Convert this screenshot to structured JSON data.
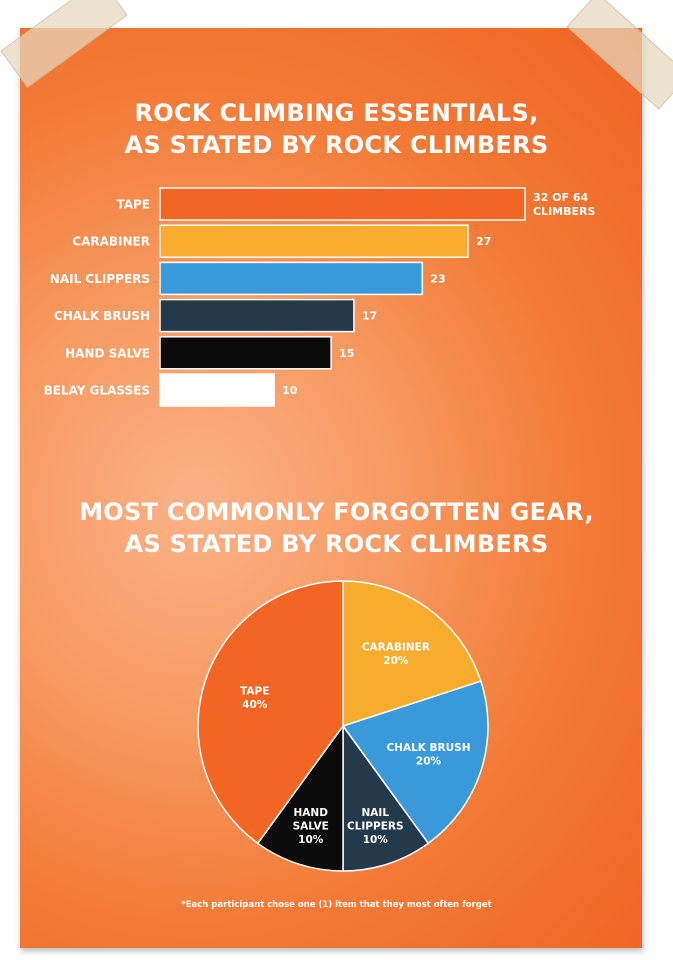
{
  "chart_data": [
    {
      "type": "bar",
      "orientation": "horizontal",
      "title": [
        "ROCK CLIMBING ESSENTIALS,",
        "AS STATED BY ROCK CLIMBERS"
      ],
      "categories": [
        "TAPE",
        "CARABINER",
        "NAIL CLIPPERS",
        "CHALK BRUSH",
        "HAND SALVE",
        "BELAY GLASSES"
      ],
      "values": [
        32,
        27,
        23,
        17,
        15,
        10
      ],
      "value_labels": [
        [
          "32 OF 64",
          "CLIMBERS"
        ],
        [
          "27"
        ],
        [
          "23"
        ],
        [
          "17"
        ],
        [
          "15"
        ],
        [
          "10"
        ]
      ],
      "colors": [
        "#f26522",
        "#f7ac2e",
        "#3a9ad9",
        "#233a4d",
        "#0b0b0b",
        "#ffffff"
      ],
      "grid": false
    },
    {
      "type": "pie",
      "title": [
        "MOST COMMONLY FORGOTTEN GEAR,",
        "AS STATED BY ROCK CLIMBERS"
      ],
      "slices": [
        {
          "label": [
            "CARABINER",
            "20%"
          ],
          "value": 20,
          "color": "#f7ac2e"
        },
        {
          "label": [
            "CHALK BRUSH",
            "20%"
          ],
          "value": 20,
          "color": "#3a9ad9"
        },
        {
          "label": [
            "NAIL",
            "CLIPPERS",
            "10%"
          ],
          "value": 10,
          "color": "#233a4d"
        },
        {
          "label": [
            "HAND",
            "SALVE",
            "10%"
          ],
          "value": 10,
          "color": "#0b0b0b"
        },
        {
          "label": [
            "TAPE",
            "40%"
          ],
          "value": 40,
          "color": "#f26522"
        }
      ],
      "footnote": "*Each participant chose one (1) item that they most often forget"
    }
  ]
}
